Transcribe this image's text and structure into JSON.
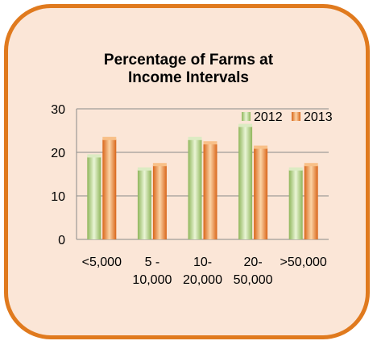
{
  "chart_data": {
    "type": "bar",
    "title_lines": [
      "Percentage of Farms at",
      "Income Intervals"
    ],
    "categories": [
      [
        "<5,000"
      ],
      [
        "5 -",
        "10,000"
      ],
      [
        "10-",
        "20,000"
      ],
      [
        "20-",
        "50,000"
      ],
      [
        ">50,000"
      ]
    ],
    "series": [
      {
        "name": "2012",
        "values": [
          19,
          16,
          23,
          26,
          16
        ],
        "color": "#b5d38b"
      },
      {
        "name": "2013",
        "values": [
          23,
          17,
          22,
          21,
          17
        ],
        "color": "#f0943a"
      }
    ],
    "yticks": [
      "0",
      "10",
      "20",
      "30"
    ],
    "ylim": [
      0,
      30
    ],
    "grid": true,
    "legend_position": "top-right"
  },
  "colors": {
    "frame_border": "#e07a1e",
    "frame_fill": "#fbe6d7"
  }
}
